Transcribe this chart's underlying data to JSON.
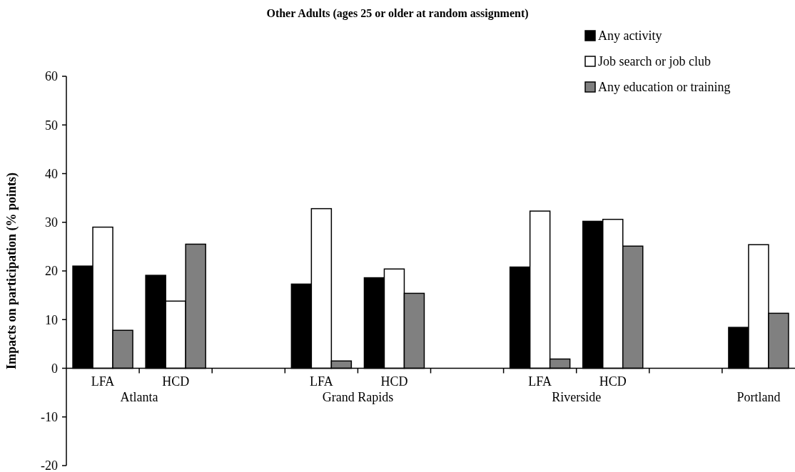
{
  "chart_data": {
    "type": "bar",
    "title": "Other Adults (ages 25 or older at random assignment)",
    "ylabel": "Impacts on participation (% points)",
    "categories": [
      "LFA",
      "HCD",
      null,
      "LFA",
      "HCD",
      null,
      "LFA",
      "HCD",
      null,
      null
    ],
    "annotations": [
      "Atlanta",
      "Grand Rapids",
      "Riverside",
      "Portland"
    ],
    "series": [
      {
        "name": "Any activity",
        "color": "#000000",
        "values": [
          21.0,
          19.1,
          null,
          17.3,
          18.6,
          null,
          20.8,
          30.2,
          null,
          8.4
        ]
      },
      {
        "name": "Job search or job club",
        "color": "#ffffff",
        "values": [
          29.0,
          13.8,
          null,
          32.8,
          20.4,
          null,
          32.3,
          30.6,
          null,
          25.4
        ]
      },
      {
        "name": "Any education or training",
        "color": "#808080",
        "values": [
          7.8,
          25.5,
          null,
          1.5,
          15.4,
          null,
          1.9,
          25.1,
          null,
          11.3
        ]
      }
    ],
    "ylim": [
      -20,
      60
    ],
    "yticks": [
      -20,
      -10,
      0,
      10,
      20,
      30,
      40,
      50,
      60
    ],
    "grid": false,
    "legend": "top right"
  }
}
